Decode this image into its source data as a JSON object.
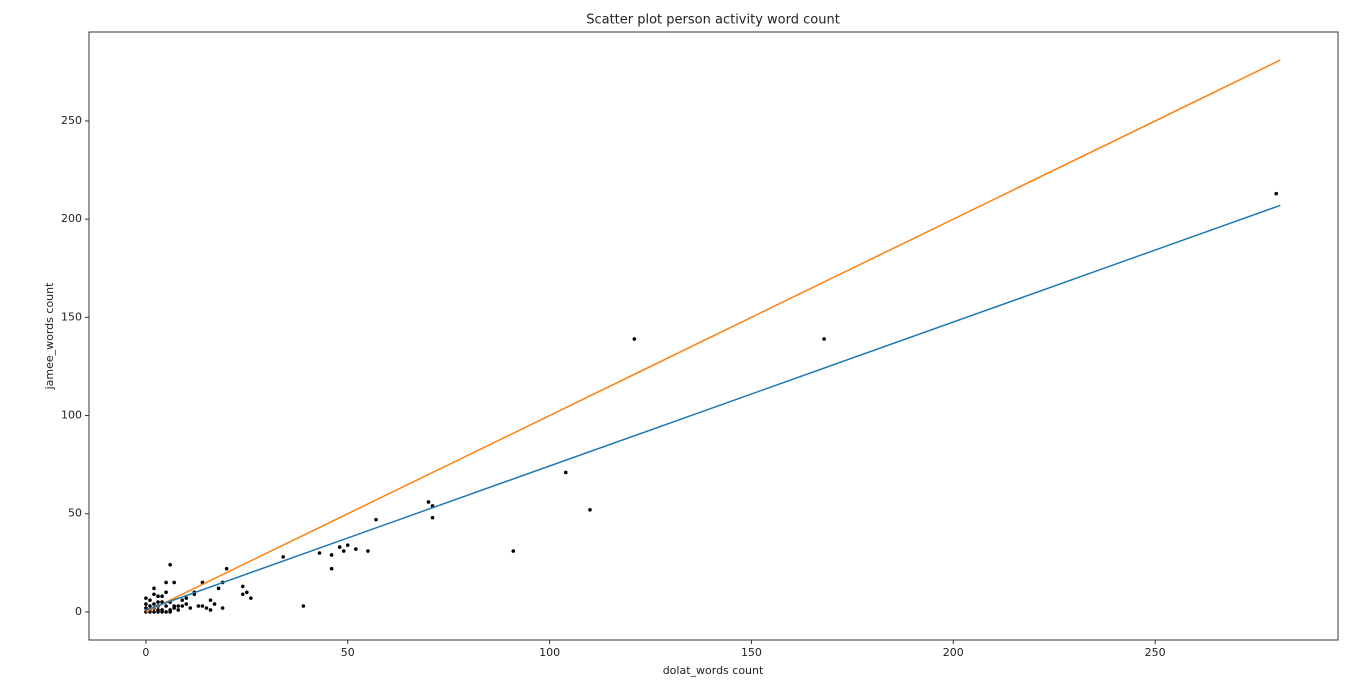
{
  "chart_data": {
    "type": "scatter",
    "title": "Scatter plot person activity word count",
    "x_label": "dolat_words count",
    "y_label": "jamee_words count",
    "xlim": [
      -14.1,
      295.3
    ],
    "ylim": [
      -14.3,
      295.3
    ],
    "xticks": [
      0,
      50,
      100,
      150,
      200,
      250
    ],
    "yticks": [
      0,
      50,
      100,
      150,
      200,
      250
    ],
    "grid": false,
    "series": [
      {
        "style": "markers",
        "color": "#000000",
        "x": [
          280,
          121,
          168,
          104,
          110,
          70,
          71,
          71,
          57,
          91,
          48,
          50,
          49,
          52,
          55,
          43,
          46,
          46,
          34,
          39,
          25,
          24,
          26,
          24,
          20,
          19,
          18,
          19,
          16,
          15,
          16,
          14,
          12,
          12,
          10,
          9,
          8,
          7,
          6,
          7,
          5,
          5,
          4,
          3,
          2,
          2,
          3,
          1,
          0,
          0,
          1,
          2,
          3,
          4,
          5,
          4,
          3,
          2,
          1,
          0,
          0,
          6,
          6,
          7,
          8,
          11,
          13,
          17,
          14,
          9,
          10,
          5,
          4,
          3,
          2,
          1,
          6
        ],
        "y": [
          213,
          139,
          139,
          71,
          52,
          56,
          54,
          48,
          47,
          31,
          33,
          34,
          31,
          32,
          31,
          30,
          29,
          22,
          28,
          3,
          10,
          13,
          7,
          9,
          22,
          15,
          12,
          2,
          6,
          2,
          1,
          15,
          10,
          9,
          4,
          3,
          3,
          3,
          24,
          15,
          15,
          10,
          8,
          8,
          12,
          9,
          5,
          6,
          7,
          4,
          3,
          2,
          1,
          1,
          0,
          0,
          0,
          0,
          1,
          2,
          0,
          5,
          1,
          2,
          1,
          2,
          3,
          4,
          3,
          6,
          7,
          3,
          5,
          3,
          4,
          0,
          0
        ]
      },
      {
        "style": "line",
        "color": "#ff7f0e",
        "x": [
          0,
          281
        ],
        "y": [
          0,
          281
        ]
      },
      {
        "style": "line",
        "color": "#1f77b4",
        "x": [
          0,
          281
        ],
        "y": [
          1,
          207
        ]
      }
    ]
  }
}
